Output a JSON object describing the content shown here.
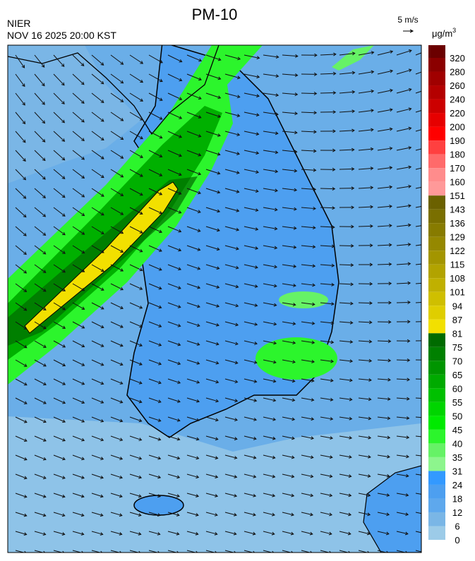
{
  "header": {
    "title": "PM-10",
    "agency": "NIER",
    "datetime": "NOV 16 2025 20:00 KST"
  },
  "wind_scale": {
    "label": "5 m/s"
  },
  "colorbar": {
    "unit": "μg/m",
    "unit_sup": "3",
    "levels": [
      {
        "label": 320,
        "color": "#6b0000"
      },
      {
        "label": 280,
        "color": "#8b0000"
      },
      {
        "label": 260,
        "color": "#a00000"
      },
      {
        "label": 240,
        "color": "#b40000"
      },
      {
        "label": 220,
        "color": "#cc0000"
      },
      {
        "label": 200,
        "color": "#e60000"
      },
      {
        "label": 190,
        "color": "#ff0000"
      },
      {
        "label": 180,
        "color": "#ff4040"
      },
      {
        "label": 170,
        "color": "#ff6a6a"
      },
      {
        "label": 160,
        "color": "#ff8c8c"
      },
      {
        "label": 151,
        "color": "#ff9999"
      },
      {
        "label": 143,
        "color": "#6b6100"
      },
      {
        "label": 136,
        "color": "#7a6f00"
      },
      {
        "label": 129,
        "color": "#877b00"
      },
      {
        "label": 122,
        "color": "#958800"
      },
      {
        "label": 115,
        "color": "#a39500"
      },
      {
        "label": 108,
        "color": "#b2a300"
      },
      {
        "label": 101,
        "color": "#c0b000"
      },
      {
        "label": 94,
        "color": "#cfbf00"
      },
      {
        "label": 87,
        "color": "#dfce00"
      },
      {
        "label": 81,
        "color": "#f2e000"
      },
      {
        "label": 75,
        "color": "#006b00"
      },
      {
        "label": 70,
        "color": "#008000"
      },
      {
        "label": 65,
        "color": "#009500"
      },
      {
        "label": 60,
        "color": "#00aa00"
      },
      {
        "label": 55,
        "color": "#00c000"
      },
      {
        "label": 50,
        "color": "#00d500"
      },
      {
        "label": 45,
        "color": "#00ea00"
      },
      {
        "label": 40,
        "color": "#2cf52c"
      },
      {
        "label": 35,
        "color": "#66f266"
      },
      {
        "label": 31,
        "color": "#8df58d"
      },
      {
        "label": 24,
        "color": "#3399ff"
      },
      {
        "label": 18,
        "color": "#4d9ff0"
      },
      {
        "label": 12,
        "color": "#5ea8ed"
      },
      {
        "label": 6,
        "color": "#7ab6e6"
      },
      {
        "label": 0,
        "color": "#9ccbe8"
      }
    ]
  }
}
